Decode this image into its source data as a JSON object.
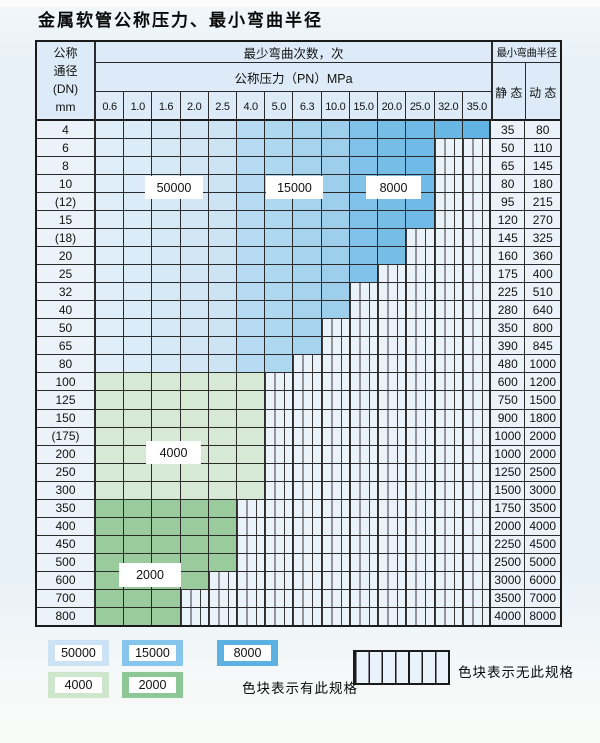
{
  "title": "金属软管公称压力、最小弯曲半径",
  "table": {
    "corner_header_lines": [
      "公称",
      "通径",
      "(DN)",
      "mm"
    ],
    "cycles_header": "最少弯曲次数，次",
    "pressure_header": "公称压力（PN）MPa",
    "radius_header": "最小弯曲半径",
    "static_header": "静 态",
    "dynamic_header": "动 态",
    "pressure_columns": [
      "0.6",
      "1.0",
      "1.6",
      "2.0",
      "2.5",
      "4.0",
      "5.0",
      "6.3",
      "10.0",
      "15.0",
      "20.0",
      "25.0",
      "32.0",
      "35.0"
    ],
    "rows": [
      {
        "dn": "4",
        "colored": 14,
        "zone": "blue",
        "static": "35",
        "dynamic": "80"
      },
      {
        "dn": "6",
        "colored": 12,
        "zone": "blue",
        "static": "50",
        "dynamic": "110"
      },
      {
        "dn": "8",
        "colored": 12,
        "zone": "blue",
        "static": "65",
        "dynamic": "145"
      },
      {
        "dn": "10",
        "colored": 12,
        "zone": "blue",
        "static": "80",
        "dynamic": "180"
      },
      {
        "dn": "(12)",
        "colored": 12,
        "zone": "blue",
        "static": "95",
        "dynamic": "215"
      },
      {
        "dn": "15",
        "colored": 12,
        "zone": "blue",
        "static": "120",
        "dynamic": "270"
      },
      {
        "dn": "(18)",
        "colored": 11,
        "zone": "blue",
        "static": "145",
        "dynamic": "325"
      },
      {
        "dn": "20",
        "colored": 11,
        "zone": "blue",
        "static": "160",
        "dynamic": "360"
      },
      {
        "dn": "25",
        "colored": 10,
        "zone": "blue",
        "static": "175",
        "dynamic": "400"
      },
      {
        "dn": "32",
        "colored": 9,
        "zone": "blue",
        "static": "225",
        "dynamic": "510"
      },
      {
        "dn": "40",
        "colored": 9,
        "zone": "blue",
        "static": "280",
        "dynamic": "640"
      },
      {
        "dn": "50",
        "colored": 8,
        "zone": "blue",
        "static": "350",
        "dynamic": "800"
      },
      {
        "dn": "65",
        "colored": 8,
        "zone": "blue",
        "static": "390",
        "dynamic": "845"
      },
      {
        "dn": "80",
        "colored": 7,
        "zone": "blue",
        "static": "480",
        "dynamic": "1000"
      },
      {
        "dn": "100",
        "colored": 6,
        "zone": "green_light",
        "static": "600",
        "dynamic": "1200"
      },
      {
        "dn": "125",
        "colored": 6,
        "zone": "green_light",
        "static": "750",
        "dynamic": "1500"
      },
      {
        "dn": "150",
        "colored": 6,
        "zone": "green_light",
        "static": "900",
        "dynamic": "1800"
      },
      {
        "dn": "(175)",
        "colored": 6,
        "zone": "green_light",
        "static": "1000",
        "dynamic": "2000"
      },
      {
        "dn": "200",
        "colored": 6,
        "zone": "green_light",
        "static": "1000",
        "dynamic": "2000"
      },
      {
        "dn": "250",
        "colored": 6,
        "zone": "green_light",
        "static": "1250",
        "dynamic": "2500"
      },
      {
        "dn": "300",
        "colored": 6,
        "zone": "green_light",
        "static": "1500",
        "dynamic": "3000"
      },
      {
        "dn": "350",
        "colored": 5,
        "zone": "green_dark",
        "static": "1750",
        "dynamic": "3500"
      },
      {
        "dn": "400",
        "colored": 5,
        "zone": "green_dark",
        "static": "2000",
        "dynamic": "4000"
      },
      {
        "dn": "450",
        "colored": 5,
        "zone": "green_dark",
        "static": "2250",
        "dynamic": "4500"
      },
      {
        "dn": "500",
        "colored": 5,
        "zone": "green_dark",
        "static": "2500",
        "dynamic": "5000"
      },
      {
        "dn": "600",
        "colored": 4,
        "zone": "green_dark",
        "static": "3000",
        "dynamic": "6000"
      },
      {
        "dn": "700",
        "colored": 3,
        "zone": "green_dark",
        "static": "3500",
        "dynamic": "7000"
      },
      {
        "dn": "800",
        "colored": 3,
        "zone": "green_dark",
        "static": "4000",
        "dynamic": "8000"
      }
    ]
  },
  "callouts": {
    "c50000": "50000",
    "c15000": "15000",
    "c8000": "8000",
    "c4000": "4000",
    "c2000": "2000"
  },
  "legend": {
    "items": [
      {
        "label": "50000",
        "color": "#cbe3f5"
      },
      {
        "label": "15000",
        "color": "#86c6ec"
      },
      {
        "label": "8000",
        "color": "#5cb1e3"
      },
      {
        "label": "4000",
        "color": "#cde6cc"
      },
      {
        "label": "2000",
        "color": "#8cc795"
      }
    ],
    "has_spec_text": "色块表示有此规格",
    "no_spec_text": "色块表示无此规格"
  },
  "colors": {
    "blue_columns": [
      "#e0eef9",
      "#dbecf8",
      "#d6e9f7",
      "#d1e7f5",
      "#cce4f4",
      "#b7dbf2",
      "#aed7f0",
      "#a6d3ee",
      "#9dcfec",
      "#80c2e9",
      "#77bee7",
      "#6fbae6",
      "#67b6e4",
      "#60b3e3"
    ],
    "green_light": "#d6e9d4",
    "green_dark": "#9acb9c",
    "hatch_bg": "#eaf3fa",
    "header_bg": "#dcebf7",
    "grid_line": "#2b2b2b"
  }
}
